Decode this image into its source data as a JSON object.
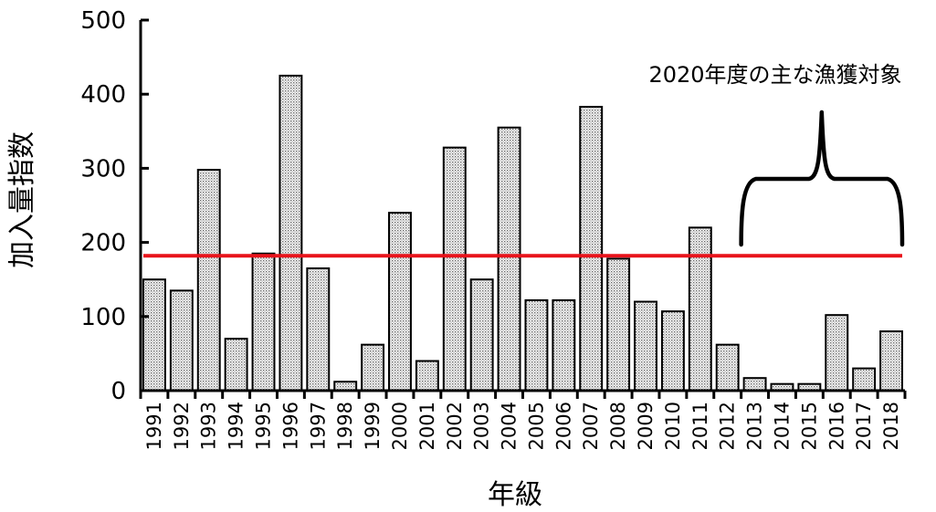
{
  "chart_data": {
    "type": "bar",
    "title": "",
    "xlabel": "年級",
    "ylabel": "加入量指数",
    "ylim": [
      0,
      500
    ],
    "yticks": [
      0,
      100,
      200,
      300,
      400,
      500
    ],
    "grid": false,
    "legend": "none",
    "categories": [
      "1991",
      "1992",
      "1993",
      "1994",
      "1995",
      "1996",
      "1997",
      "1998",
      "1999",
      "2000",
      "2001",
      "2002",
      "2003",
      "2004",
      "2005",
      "2006",
      "2007",
      "2008",
      "2009",
      "2010",
      "2011",
      "2012",
      "2013",
      "2014",
      "2015",
      "2016",
      "2017",
      "2018"
    ],
    "values": [
      150,
      135,
      298,
      70,
      185,
      425,
      165,
      12,
      62,
      240,
      40,
      328,
      150,
      355,
      122,
      122,
      383,
      178,
      120,
      107,
      220,
      62,
      17,
      9,
      9,
      102,
      30,
      80
    ],
    "reference_line": {
      "value": 182,
      "color": "#e8131b"
    },
    "annotation": {
      "text": "2020年度の主な漁獲対象",
      "from_category": "2013",
      "to_category": "2018"
    },
    "bar_fill": "#dcdcdc",
    "bar_stroke": "#000000"
  }
}
